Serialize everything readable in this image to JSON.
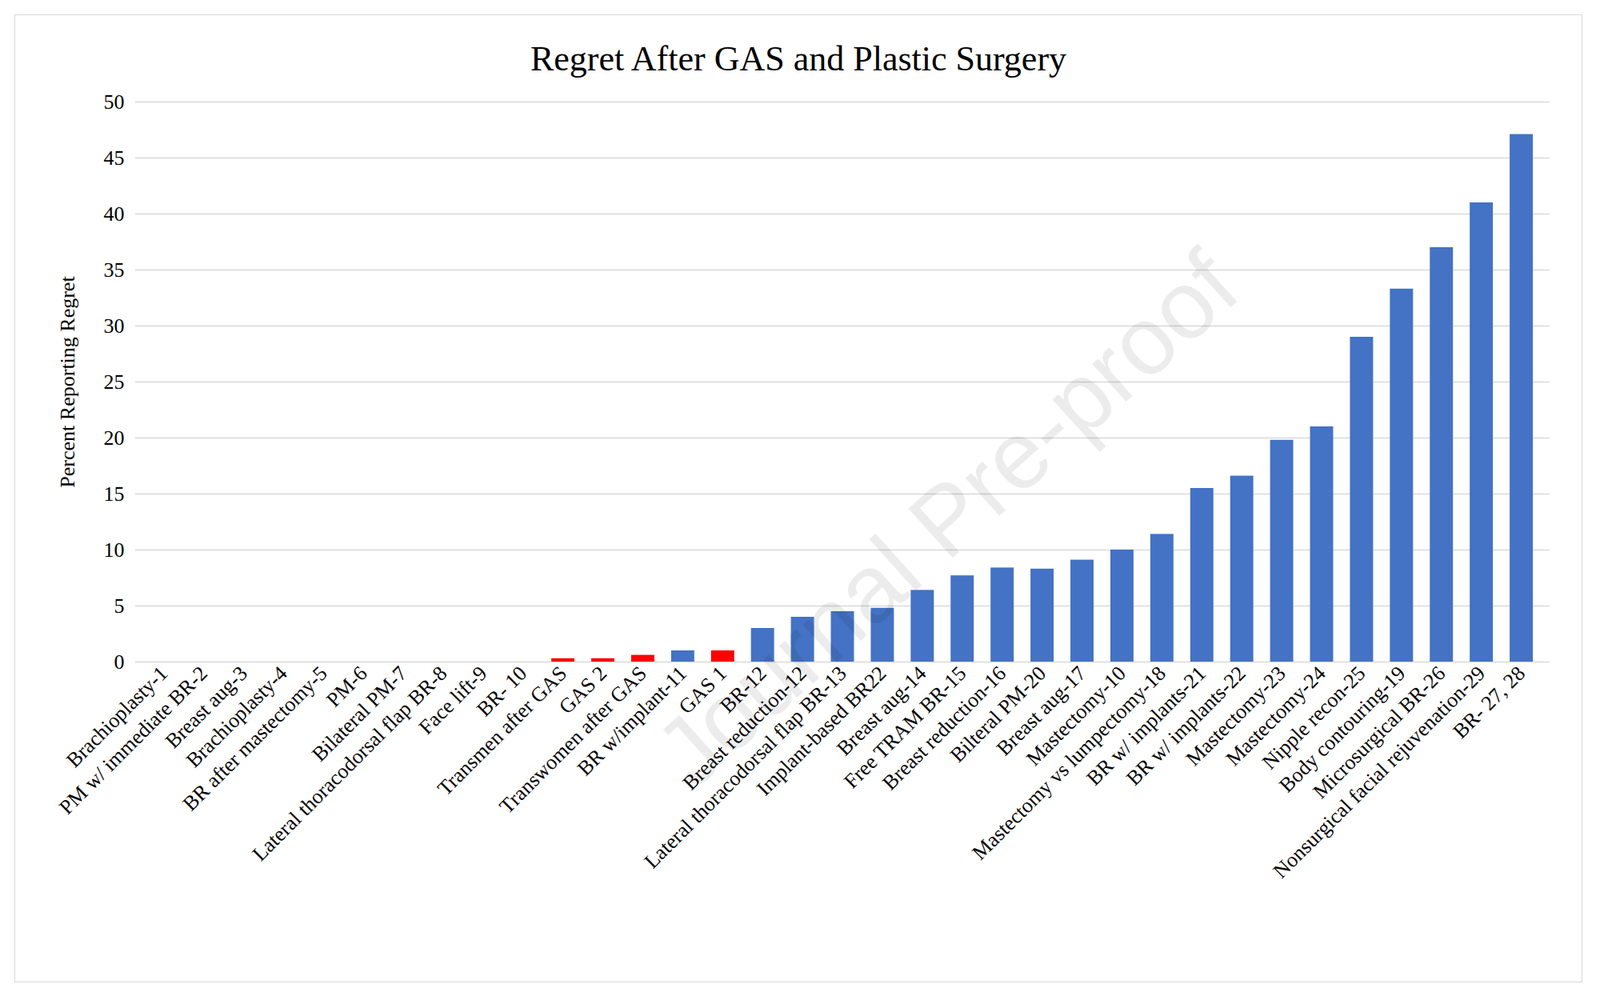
{
  "chart_data": {
    "type": "bar",
    "title": "Regret After GAS and Plastic Surgery",
    "y_label": "Percent Reporting Regret",
    "annotations": [
      "Journal Pre-proof"
    ],
    "categories": [
      "Brachioplasty-1",
      "PM w/ immediate BR-2",
      "Breast aug-3",
      "Brachioplasty-4",
      "BR after mastectomy-5",
      "PM-6",
      "Bilateral PM-7",
      "Lateral thoracodorsal flap BR-8",
      "Face lift-9",
      "BR- 10",
      "Transmen after GAS",
      "GAS 2",
      "Transwomen after GAS",
      "BR w/implant-11",
      "GAS 1",
      "BR-12",
      "Breast reduction-12",
      "Lateral thoracodorsal flap BR-13",
      "Implant-based BR22",
      "Breast aug-14",
      "Free TRAM BR-15",
      "Breast reduction-16",
      "Bilteral PM-20",
      "Breast aug-17",
      "Mastectomy-10",
      "Mastectomy vs lumpectomy-18",
      "BR w/ implants-21",
      "BR w/ implants-22",
      "Mastectomy-23",
      "Mastectomy-24",
      "Nipple recon-25",
      "Body contouring-19",
      "Microsurgical BR-26",
      "Nonsurgical facial rejuvenation-29",
      "BR- 27, 28"
    ],
    "values": [
      0,
      0,
      0,
      0,
      0,
      0,
      0,
      0,
      0,
      0,
      0.3,
      0.3,
      0.6,
      1.0,
      1.0,
      3.0,
      4.0,
      4.5,
      4.8,
      6.4,
      7.7,
      8.4,
      8.3,
      9.1,
      10.0,
      11.4,
      15.5,
      16.6,
      19.8,
      21.0,
      29.0,
      33.3,
      37.0,
      41.0,
      47.1
    ],
    "colors": [
      "#4472c4",
      "#4472c4",
      "#4472c4",
      "#4472c4",
      "#4472c4",
      "#4472c4",
      "#4472c4",
      "#4472c4",
      "#4472c4",
      "#4472c4",
      "#ff0000",
      "#ff0000",
      "#ff0000",
      "#4472c4",
      "#ff0000",
      "#4472c4",
      "#4472c4",
      "#4472c4",
      "#4472c4",
      "#4472c4",
      "#4472c4",
      "#4472c4",
      "#4472c4",
      "#4472c4",
      "#4472c4",
      "#4472c4",
      "#4472c4",
      "#4472c4",
      "#4472c4",
      "#4472c4",
      "#4472c4",
      "#4472c4",
      "#4472c4",
      "#4472c4",
      "#4472c4"
    ],
    "ylim": [
      0,
      50
    ],
    "yticks": [
      0,
      5,
      10,
      15,
      20,
      25,
      30,
      35,
      40,
      45,
      50
    ],
    "grid": true
  }
}
